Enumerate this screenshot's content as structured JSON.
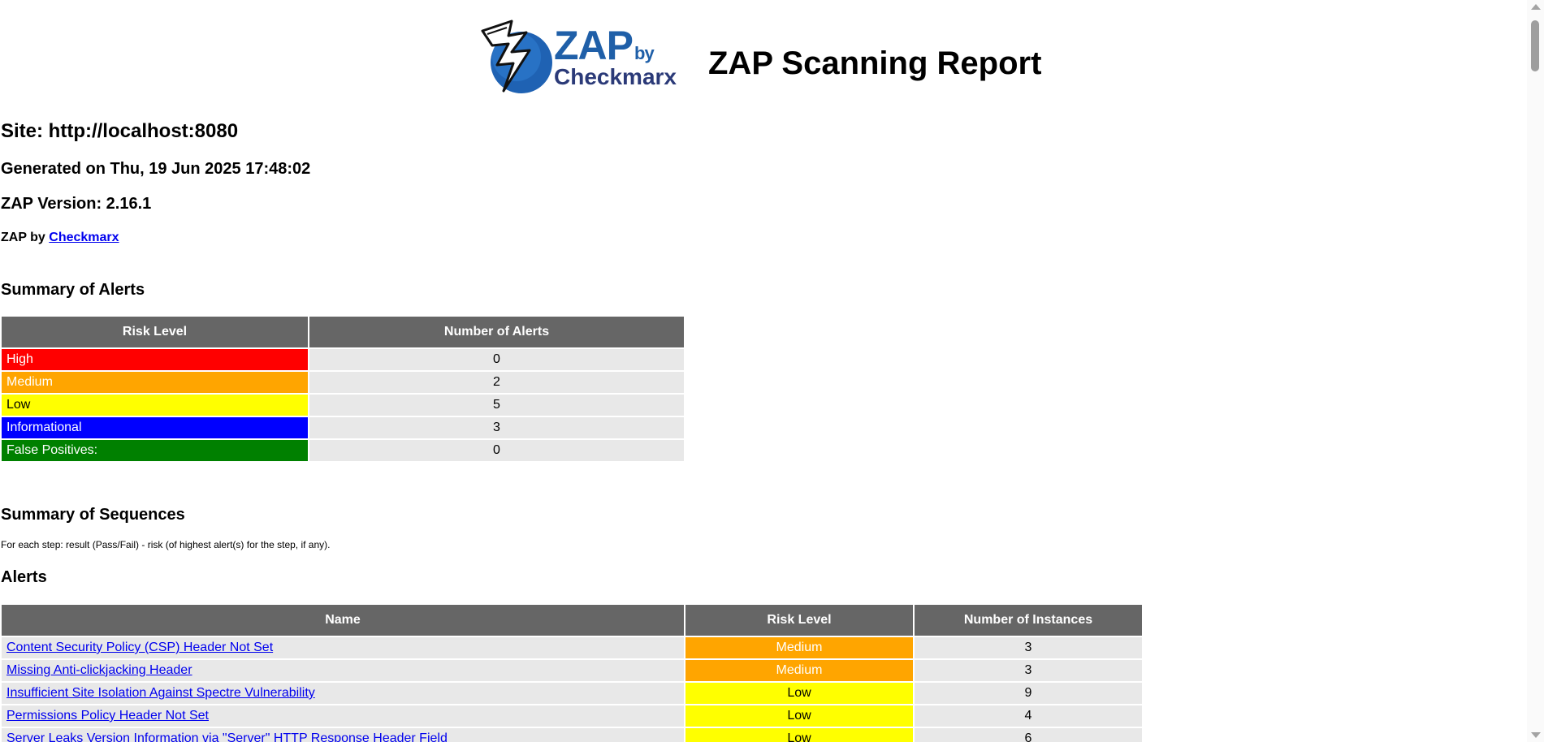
{
  "header": {
    "logo_zap": "ZAP",
    "logo_by": "by",
    "logo_checkmarx": "Checkmarx",
    "title": "ZAP Scanning Report"
  },
  "site": "Site: http://localhost:8080",
  "generated": "Generated on Thu, 19 Jun 2025 17:48:02",
  "version": "ZAP Version: 2.16.1",
  "byline": {
    "prefix": "ZAP by ",
    "link": "Checkmarx"
  },
  "summary_alerts": {
    "heading": "Summary of Alerts",
    "columns": [
      "Risk Level",
      "Number of Alerts"
    ],
    "rows": [
      {
        "risk": "High",
        "count": "0",
        "color": "#ff0000",
        "text_color": "#ffffff"
      },
      {
        "risk": "Medium",
        "count": "2",
        "color": "#ffa500",
        "text_color": "#ffffff"
      },
      {
        "risk": "Low",
        "count": "5",
        "color": "#ffff00",
        "text_color": "#000000"
      },
      {
        "risk": "Informational",
        "count": "3",
        "color": "#0000ff",
        "text_color": "#ffffff"
      },
      {
        "risk": "False Positives:",
        "count": "0",
        "color": "#008000",
        "text_color": "#ffffff"
      }
    ]
  },
  "summary_sequences": {
    "heading": "Summary of Sequences",
    "note": "For each step: result (Pass/Fail) - risk (of highest alert(s) for the step, if any)."
  },
  "alerts": {
    "heading": "Alerts",
    "columns": [
      "Name",
      "Risk Level",
      "Number of Instances"
    ],
    "rows": [
      {
        "name": "Content Security Policy (CSP) Header Not Set",
        "risk": "Medium",
        "instances": "3",
        "color": "#ffa500",
        "text_color": "#ffffff"
      },
      {
        "name": "Missing Anti-clickjacking Header",
        "risk": "Medium",
        "instances": "3",
        "color": "#ffa500",
        "text_color": "#ffffff"
      },
      {
        "name": "Insufficient Site Isolation Against Spectre Vulnerability",
        "risk": "Low",
        "instances": "9",
        "color": "#ffff00",
        "text_color": "#000000"
      },
      {
        "name": "Permissions Policy Header Not Set",
        "risk": "Low",
        "instances": "4",
        "color": "#ffff00",
        "text_color": "#000000"
      },
      {
        "name": "Server Leaks Version Information via \"Server\" HTTP Response Header Field",
        "risk": "Low",
        "instances": "6",
        "color": "#ffff00",
        "text_color": "#000000"
      }
    ]
  }
}
